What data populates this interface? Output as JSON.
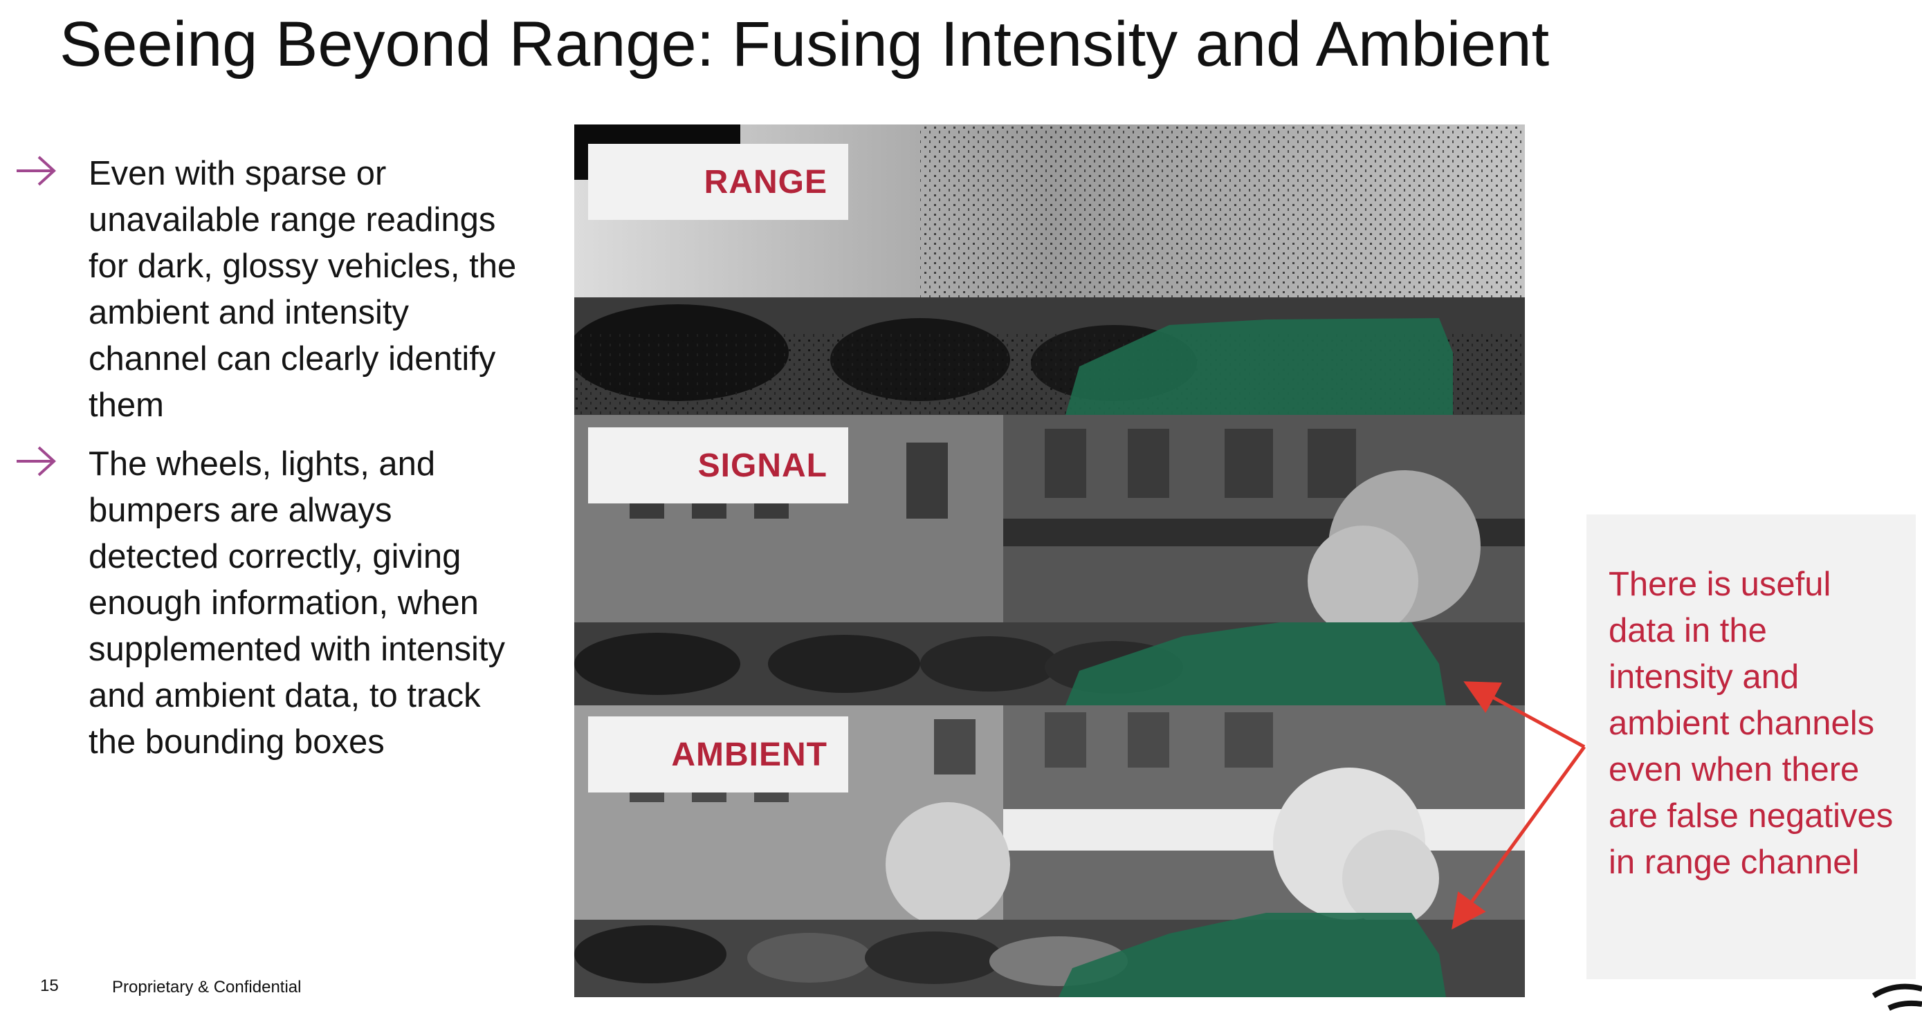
{
  "slide": {
    "title": "Seeing Beyond Range: Fusing Intensity and Ambient",
    "bullets": [
      "Even with sparse or unavailable range readings for dark, glossy vehicles, the ambient and intensity channel can clearly identify them",
      "The wheels, lights, and bumpers are always detected correctly, giving enough information, when supplemented with intensity and ambient data, to track the bounding boxes"
    ],
    "panels": [
      {
        "label": "RANGE"
      },
      {
        "label": "SIGNAL"
      },
      {
        "label": "AMBIENT"
      }
    ],
    "note": "There is useful data in the intensity and ambient channels even when there are false negatives in range channel",
    "footer": {
      "page_number": "15",
      "confidential": "Proprietary & Confidential"
    },
    "colors": {
      "accent_red": "#c0263f",
      "bullet_arrow": "#a0488f",
      "car_highlight": "#1f6b4e"
    },
    "icons": {
      "bullet": "arrow-right-icon"
    }
  }
}
